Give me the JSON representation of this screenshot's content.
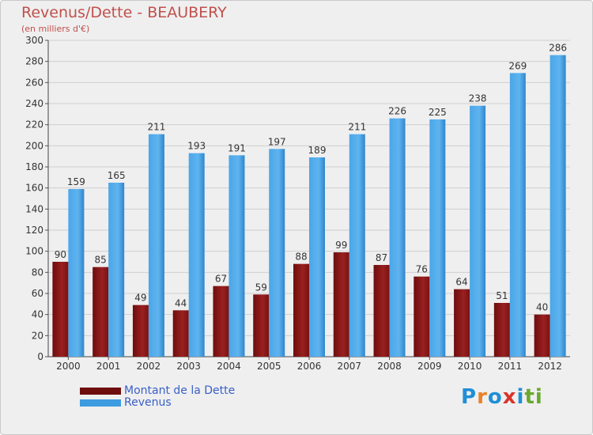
{
  "chart_data": {
    "type": "bar",
    "title": "Revenus/Dette - BEAUBERY",
    "subtitle": "(en milliers d'€)",
    "categories": [
      "2000",
      "2001",
      "2002",
      "2003",
      "2004",
      "2005",
      "2006",
      "2007",
      "2008",
      "2009",
      "2010",
      "2011",
      "2012"
    ],
    "series": [
      {
        "name": "Montant de la Dette",
        "color": "#8b1a1a",
        "values": [
          90,
          85,
          49,
          44,
          67,
          59,
          88,
          99,
          87,
          76,
          64,
          51,
          40
        ]
      },
      {
        "name": "Revenus",
        "color": "#3d9be0",
        "values": [
          159,
          165,
          211,
          193,
          191,
          197,
          189,
          211,
          226,
          225,
          238,
          269,
          286
        ]
      }
    ],
    "ylim": [
      0,
      300
    ],
    "yticks": [
      0,
      20,
      40,
      60,
      80,
      100,
      120,
      140,
      160,
      180,
      200,
      220,
      240,
      260,
      280,
      300
    ],
    "grid": true,
    "legend": "bottom-left"
  },
  "logo": {
    "text": "Proxiti",
    "letters": [
      "P",
      "r",
      "o",
      "x",
      "i",
      "ti"
    ]
  }
}
